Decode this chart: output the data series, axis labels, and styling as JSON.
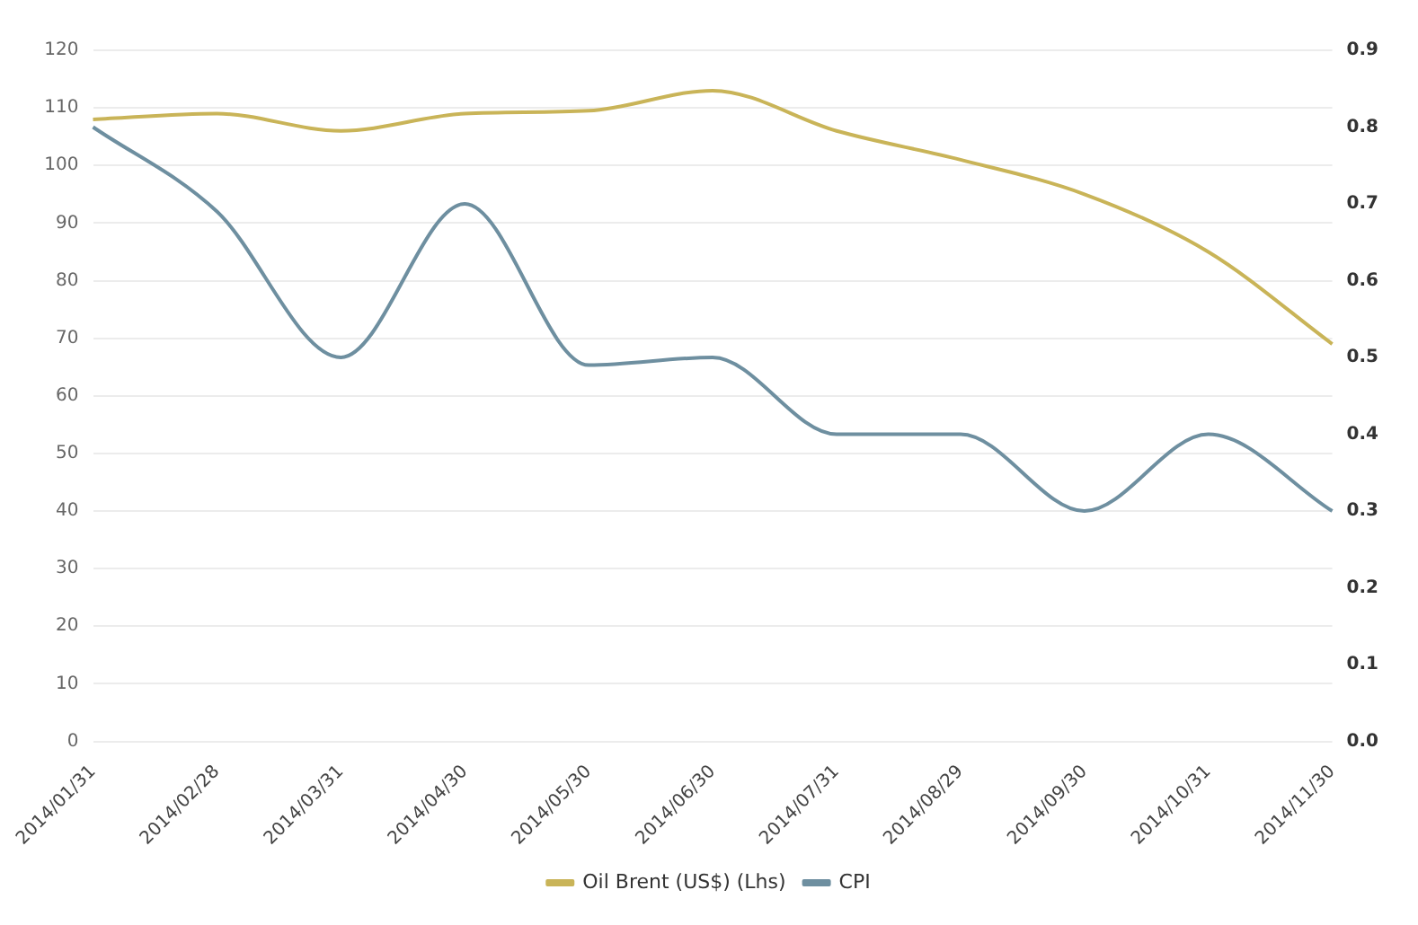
{
  "chart_data": {
    "type": "line",
    "categories": [
      "2014/01/31",
      "2014/02/28",
      "2014/03/31",
      "2014/04/30",
      "2014/05/30",
      "2014/06/30",
      "2014/07/31",
      "2014/08/29",
      "2014/09/30",
      "2014/10/31",
      "2014/11/30"
    ],
    "series": [
      {
        "name": "Oil Brent (US$) (Lhs)",
        "color": "#c9b458",
        "values": [
          108,
          109,
          106,
          109,
          109.5,
          113,
          106,
          101,
          95,
          85,
          69
        ]
      },
      {
        "name": "CPI",
        "color": "#6e8fa0",
        "axis": "y2",
        "values": [
          0.8,
          0.69,
          0.5,
          0.7,
          0.49,
          0.5,
          0.4,
          0.4,
          0.3,
          0.4,
          0.3
        ]
      }
    ],
    "ylim": [
      0,
      120
    ],
    "yticks": [
      0,
      10,
      20,
      30,
      40,
      50,
      60,
      70,
      80,
      90,
      100,
      110,
      120
    ],
    "y2lim": [
      0,
      0.9
    ],
    "y2ticks": [
      {
        "value": 0,
        "label": "0.0"
      },
      0.1,
      0.2,
      0.3,
      0.4,
      0.5,
      0.6,
      0.7,
      0.8,
      0.9
    ],
    "grid": "y",
    "legend": "bottom",
    "marker": "none",
    "line_style": "solid"
  }
}
